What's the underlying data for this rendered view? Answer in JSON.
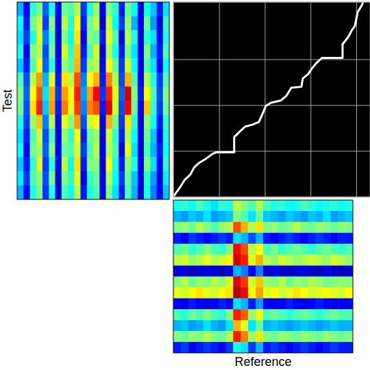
{
  "chart_data": [
    {
      "type": "heatmap",
      "y_label": "Test",
      "zlim": [
        0,
        1
      ],
      "tick_labels": false,
      "z": [
        [
          0.3,
          0.12,
          0.42,
          0.5,
          0.22,
          0.4,
          0.1,
          0.48,
          0.45,
          0.55,
          0.18,
          0.4,
          0.52,
          0.12,
          0.5,
          0.42,
          0.15,
          0.48,
          0.38,
          0.1,
          0.4,
          0.32,
          0.15,
          0.35
        ],
        [
          0.38,
          0.15,
          0.48,
          0.58,
          0.18,
          0.5,
          0.12,
          0.55,
          0.4,
          0.62,
          0.15,
          0.48,
          0.55,
          0.1,
          0.58,
          0.38,
          0.18,
          0.52,
          0.3,
          0.12,
          0.48,
          0.28,
          0.1,
          0.42
        ],
        [
          0.35,
          0.18,
          0.4,
          0.6,
          0.25,
          0.45,
          0.08,
          0.5,
          0.38,
          0.65,
          0.12,
          0.5,
          0.48,
          0.15,
          0.6,
          0.45,
          0.12,
          0.55,
          0.4,
          0.08,
          0.42,
          0.35,
          0.12,
          0.4
        ],
        [
          0.4,
          0.12,
          0.5,
          0.55,
          0.2,
          0.48,
          0.1,
          0.58,
          0.42,
          0.68,
          0.15,
          0.45,
          0.58,
          0.1,
          0.55,
          0.4,
          0.15,
          0.5,
          0.35,
          0.12,
          0.5,
          0.3,
          0.15,
          0.45
        ],
        [
          0.32,
          0.15,
          0.45,
          0.62,
          0.22,
          0.42,
          0.12,
          0.52,
          0.45,
          0.7,
          0.18,
          0.52,
          0.55,
          0.12,
          0.62,
          0.48,
          0.18,
          0.58,
          0.38,
          0.1,
          0.45,
          0.35,
          0.12,
          0.38
        ],
        [
          0.45,
          0.2,
          0.55,
          0.72,
          0.3,
          0.6,
          0.15,
          0.65,
          0.55,
          0.8,
          0.25,
          0.62,
          0.7,
          0.15,
          0.75,
          0.55,
          0.2,
          0.7,
          0.45,
          0.12,
          0.55,
          0.4,
          0.18,
          0.45
        ],
        [
          0.5,
          0.22,
          0.62,
          0.8,
          0.35,
          0.7,
          0.18,
          0.72,
          0.62,
          0.85,
          0.28,
          0.72,
          0.88,
          0.18,
          0.85,
          0.6,
          0.22,
          0.92,
          0.5,
          0.15,
          0.62,
          0.45,
          0.2,
          0.5
        ],
        [
          0.48,
          0.2,
          0.65,
          0.85,
          0.32,
          0.72,
          0.15,
          0.75,
          0.6,
          0.82,
          0.25,
          0.75,
          0.8,
          0.15,
          0.9,
          0.58,
          0.2,
          0.88,
          0.48,
          0.12,
          0.68,
          0.42,
          0.18,
          0.48
        ],
        [
          0.4,
          0.18,
          0.52,
          0.68,
          0.25,
          0.55,
          0.12,
          0.6,
          0.5,
          0.72,
          0.2,
          0.58,
          0.62,
          0.12,
          0.7,
          0.5,
          0.18,
          0.65,
          0.42,
          0.1,
          0.52,
          0.38,
          0.15,
          0.42
        ],
        [
          0.35,
          0.15,
          0.45,
          0.58,
          0.2,
          0.45,
          0.1,
          0.52,
          0.42,
          0.62,
          0.15,
          0.48,
          0.52,
          0.1,
          0.58,
          0.42,
          0.15,
          0.55,
          0.38,
          0.1,
          0.48,
          0.32,
          0.12,
          0.4
        ],
        [
          0.38,
          0.12,
          0.48,
          0.55,
          0.22,
          0.5,
          0.12,
          0.48,
          0.45,
          0.58,
          0.18,
          0.45,
          0.55,
          0.12,
          0.55,
          0.45,
          0.12,
          0.6,
          0.35,
          0.08,
          0.45,
          0.3,
          0.15,
          0.38
        ],
        [
          0.32,
          0.15,
          0.42,
          0.6,
          0.18,
          0.42,
          0.1,
          0.55,
          0.38,
          0.65,
          0.15,
          0.5,
          0.5,
          0.1,
          0.62,
          0.4,
          0.15,
          0.52,
          0.4,
          0.12,
          0.5,
          0.35,
          0.12,
          0.42
        ],
        [
          0.36,
          0.18,
          0.45,
          0.52,
          0.2,
          0.48,
          0.08,
          0.5,
          0.42,
          0.6,
          0.12,
          0.42,
          0.48,
          0.12,
          0.55,
          0.38,
          0.18,
          0.48,
          0.32,
          0.1,
          0.42,
          0.28,
          0.1,
          0.36
        ],
        [
          0.3,
          0.12,
          0.4,
          0.5,
          0.18,
          0.4,
          0.1,
          0.45,
          0.38,
          0.55,
          0.15,
          0.4,
          0.45,
          0.1,
          0.5,
          0.35,
          0.15,
          0.45,
          0.3,
          0.08,
          0.4,
          0.25,
          0.12,
          0.32
        ]
      ]
    },
    {
      "type": "line",
      "color": "#ffffff",
      "grid": true,
      "tick_labels": false,
      "xlim": [
        0,
        43
      ],
      "ylim": [
        0,
        42.5
      ],
      "xticks": [
        10,
        20,
        30,
        40
      ],
      "yticks": [
        10,
        20,
        30
      ],
      "x": [
        0,
        1.3,
        2.5,
        3.7,
        4.5,
        5.5,
        7.0,
        8.5,
        9.4,
        13.3,
        13.3,
        14.5,
        15.7,
        17.2,
        18.7,
        19.6,
        20.2,
        21.3,
        23.5,
        24.7,
        25.8,
        28.0,
        28.3,
        29.5,
        30.3,
        31.3,
        32.5,
        37.0,
        37.0,
        38.2,
        39.0,
        39.7,
        40.0,
        40.3,
        41.2,
        41.5
      ],
      "values": [
        0,
        1.8,
        3.7,
        4.8,
        6.3,
        7.3,
        8.2,
        9.3,
        9.7,
        9.7,
        13.0,
        14.2,
        15.3,
        15.7,
        16.3,
        18.3,
        19.8,
        20.5,
        21.0,
        22.0,
        23.8,
        24.0,
        25.8,
        26.8,
        28.0,
        29.2,
        30.3,
        30.3,
        33.3,
        34.8,
        36.3,
        37.3,
        38.8,
        40.3,
        41.8,
        42.5
      ]
    },
    {
      "type": "heatmap",
      "x_label": "Reference",
      "zlim": [
        0,
        1
      ],
      "tick_labels": false,
      "z": [
        [
          0.4,
          0.42,
          0.38,
          0.45,
          0.4,
          0.35,
          0.42,
          0.4,
          0.55,
          0.5,
          0.45,
          0.55,
          0.45,
          0.4,
          0.42,
          0.38,
          0.4,
          0.45,
          0.42,
          0.38,
          0.4,
          0.42,
          0.38,
          0.4
        ],
        [
          0.3,
          0.28,
          0.32,
          0.3,
          0.35,
          0.28,
          0.3,
          0.32,
          0.5,
          0.45,
          0.35,
          0.48,
          0.32,
          0.3,
          0.28,
          0.32,
          0.3,
          0.28,
          0.32,
          0.3,
          0.35,
          0.28,
          0.3,
          0.32
        ],
        [
          0.5,
          0.52,
          0.48,
          0.55,
          0.5,
          0.45,
          0.52,
          0.55,
          0.8,
          0.7,
          0.55,
          0.65,
          0.5,
          0.52,
          0.48,
          0.5,
          0.55,
          0.5,
          0.48,
          0.52,
          0.5,
          0.48,
          0.52,
          0.5
        ],
        [
          0.15,
          0.12,
          0.18,
          0.15,
          0.12,
          0.15,
          0.18,
          0.15,
          0.35,
          0.3,
          0.2,
          0.3,
          0.15,
          0.12,
          0.15,
          0.18,
          0.15,
          0.12,
          0.15,
          0.18,
          0.15,
          0.12,
          0.15,
          0.15
        ],
        [
          0.45,
          0.48,
          0.42,
          0.45,
          0.5,
          0.45,
          0.42,
          0.5,
          0.88,
          0.8,
          0.55,
          0.62,
          0.45,
          0.48,
          0.42,
          0.45,
          0.48,
          0.45,
          0.42,
          0.45,
          0.48,
          0.45,
          0.42,
          0.45
        ],
        [
          0.55,
          0.58,
          0.52,
          0.55,
          0.6,
          0.55,
          0.58,
          0.62,
          0.92,
          0.85,
          0.6,
          0.7,
          0.55,
          0.52,
          0.58,
          0.55,
          0.52,
          0.55,
          0.58,
          0.55,
          0.52,
          0.58,
          0.55,
          0.52
        ],
        [
          0.08,
          0.1,
          0.06,
          0.08,
          0.1,
          0.08,
          0.06,
          0.1,
          0.3,
          0.25,
          0.12,
          0.25,
          0.08,
          0.1,
          0.08,
          0.06,
          0.08,
          0.1,
          0.08,
          0.06,
          0.1,
          0.08,
          0.06,
          0.08
        ],
        [
          0.5,
          0.55,
          0.48,
          0.52,
          0.5,
          0.55,
          0.52,
          0.58,
          0.9,
          0.82,
          0.58,
          0.68,
          0.52,
          0.5,
          0.55,
          0.48,
          0.52,
          0.5,
          0.55,
          0.52,
          0.48,
          0.5,
          0.52,
          0.5
        ],
        [
          0.6,
          0.58,
          0.62,
          0.65,
          0.6,
          0.58,
          0.62,
          0.65,
          0.95,
          0.88,
          0.62,
          0.72,
          0.6,
          0.62,
          0.58,
          0.6,
          0.65,
          0.62,
          0.58,
          0.6,
          0.62,
          0.6,
          0.58,
          0.62
        ],
        [
          0.12,
          0.1,
          0.15,
          0.12,
          0.1,
          0.12,
          0.15,
          0.12,
          0.35,
          0.3,
          0.15,
          0.28,
          0.12,
          0.1,
          0.12,
          0.15,
          0.12,
          0.1,
          0.12,
          0.15,
          0.12,
          0.1,
          0.12,
          0.12
        ],
        [
          0.45,
          0.42,
          0.48,
          0.45,
          0.5,
          0.45,
          0.42,
          0.5,
          0.85,
          0.78,
          0.52,
          0.62,
          0.45,
          0.48,
          0.45,
          0.42,
          0.45,
          0.48,
          0.45,
          0.42,
          0.45,
          0.48,
          0.45,
          0.45
        ],
        [
          0.3,
          0.32,
          0.28,
          0.3,
          0.35,
          0.3,
          0.28,
          0.35,
          0.7,
          0.6,
          0.35,
          0.48,
          0.3,
          0.32,
          0.3,
          0.28,
          0.3,
          0.32,
          0.3,
          0.28,
          0.3,
          0.32,
          0.3,
          0.3
        ],
        [
          0.5,
          0.48,
          0.52,
          0.5,
          0.55,
          0.5,
          0.48,
          0.55,
          0.85,
          0.75,
          0.52,
          0.65,
          0.5,
          0.48,
          0.52,
          0.5,
          0.48,
          0.52,
          0.5,
          0.48,
          0.52,
          0.5,
          0.48,
          0.5
        ],
        [
          0.15,
          0.18,
          0.12,
          0.15,
          0.18,
          0.15,
          0.12,
          0.18,
          0.4,
          0.35,
          0.18,
          0.3,
          0.15,
          0.18,
          0.15,
          0.12,
          0.15,
          0.18,
          0.15,
          0.12,
          0.15,
          0.18,
          0.15,
          0.15
        ]
      ]
    }
  ]
}
